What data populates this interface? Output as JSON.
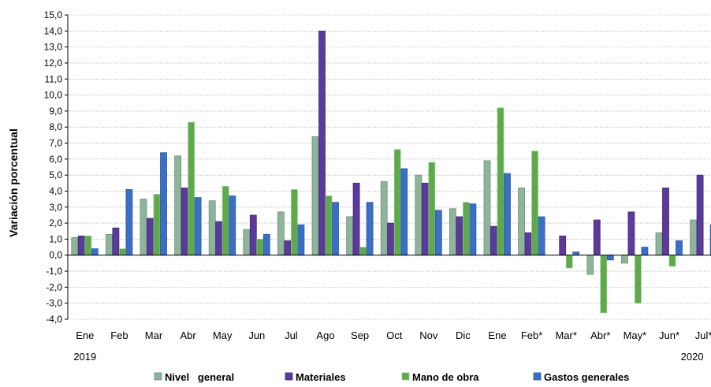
{
  "chart_data": {
    "type": "bar",
    "ylabel": "Variación porcentual",
    "ylim": [
      -4.0,
      15.0
    ],
    "ytick_step": 1.0,
    "grid": true,
    "legend_placement": "bottom",
    "categories": [
      "Ene",
      "Feb",
      "Mar",
      "Abr",
      "May",
      "Jun",
      "Jul",
      "Ago",
      "Sep",
      "Oct",
      "Nov",
      "Dic",
      "Ene",
      "Feb*",
      "Mar*",
      "Abr*",
      "May*",
      "Jun*",
      "Jul*"
    ],
    "year_labels": [
      {
        "category_index": 0,
        "text": "2019"
      },
      {
        "category_index": 18,
        "text": "2020"
      }
    ],
    "series": [
      {
        "name": "Nivel   general",
        "color": "#8fb49c",
        "stroke": "#6f8f7a",
        "values": [
          1.1,
          1.3,
          3.5,
          6.2,
          3.4,
          1.6,
          2.7,
          7.4,
          2.4,
          4.6,
          5.0,
          2.9,
          5.9,
          4.2,
          0.0,
          -1.2,
          -0.5,
          1.4,
          2.2
        ]
      },
      {
        "name": "Materiales",
        "color": "#5b3a9b",
        "stroke": "#432a75",
        "values": [
          1.2,
          1.7,
          2.3,
          4.2,
          2.1,
          2.5,
          0.9,
          14.0,
          4.5,
          2.0,
          4.5,
          2.4,
          1.8,
          1.4,
          1.2,
          2.2,
          2.7,
          4.2,
          5.0
        ]
      },
      {
        "name": "Mano de obra",
        "color": "#5fa84c",
        "stroke": "#8fd08a",
        "values": [
          1.2,
          0.4,
          3.8,
          8.3,
          4.3,
          1.0,
          4.1,
          3.7,
          0.5,
          6.6,
          5.8,
          3.3,
          9.2,
          6.5,
          -0.8,
          -3.6,
          -3.0,
          -0.7,
          null
        ]
      },
      {
        "name": "Gastos generales",
        "color": "#3a6fc4",
        "stroke": "#2c58a0",
        "values": [
          0.4,
          4.1,
          6.4,
          3.6,
          3.7,
          1.3,
          1.9,
          3.3,
          3.3,
          5.4,
          2.8,
          3.2,
          5.1,
          2.4,
          0.2,
          -0.3,
          0.5,
          0.9,
          1.9
        ]
      }
    ]
  }
}
